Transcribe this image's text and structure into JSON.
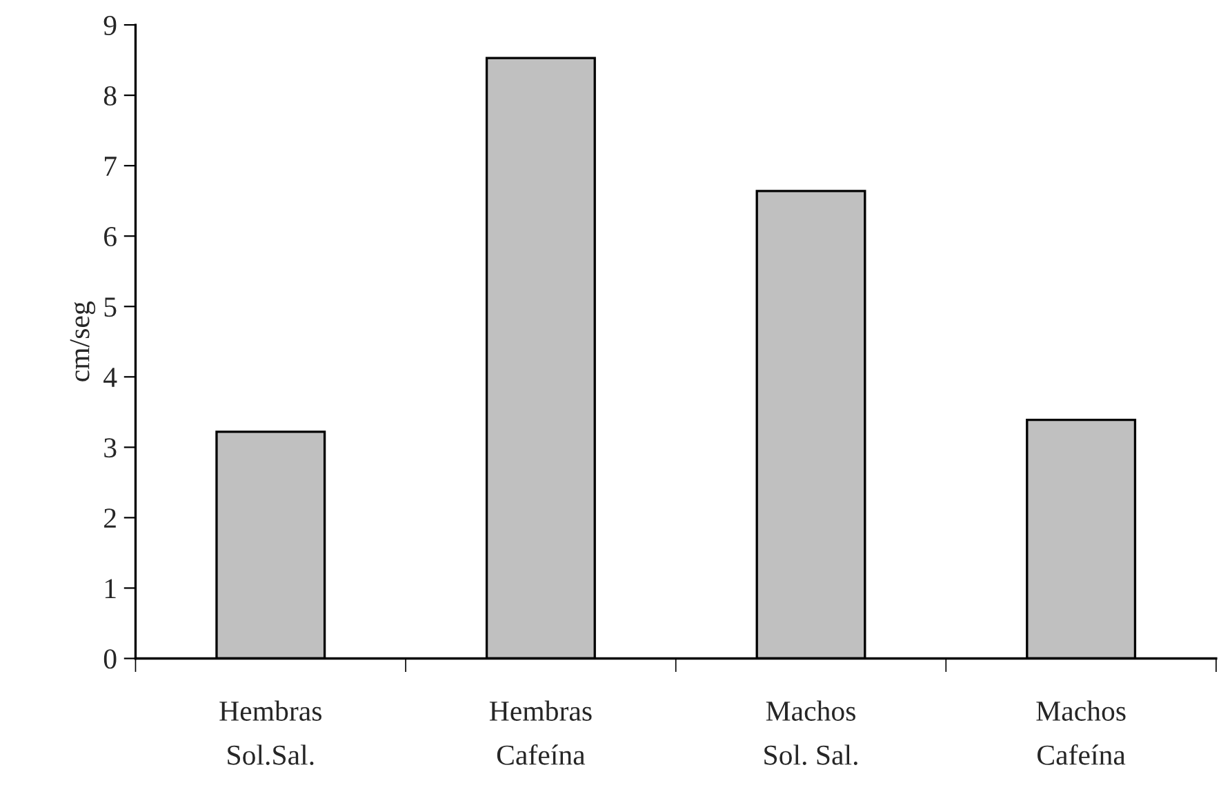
{
  "chart_data": {
    "type": "bar",
    "ylabel": "cm/seg",
    "categories": [
      "Hembras\nSol.Sal.",
      "Hembras\nCafeína",
      "Machos\nSol. Sal.",
      "Machos\nCafeína"
    ],
    "values": [
      3.22,
      8.53,
      6.64,
      3.39
    ],
    "color": "#c0c0c0",
    "ylim": [
      0,
      9
    ],
    "yticks": [
      0,
      1,
      2,
      3,
      4,
      5,
      6,
      7,
      8,
      9
    ],
    "grid": false,
    "legend": false
  }
}
